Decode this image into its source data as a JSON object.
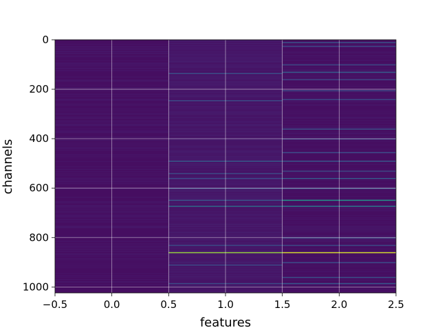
{
  "chart_data": {
    "type": "heatmap",
    "title": "",
    "xlabel": "features",
    "ylabel": "channels",
    "xlim": [
      -0.5,
      2.5
    ],
    "ylim": [
      1024,
      0
    ],
    "y_inverted": true,
    "grid": true,
    "colormap": "viridis",
    "x_ticks": [
      -0.5,
      0.0,
      0.5,
      1.0,
      1.5,
      2.0,
      2.5
    ],
    "x_tick_labels": [
      "−0.5",
      "0.0",
      "0.5",
      "1.0",
      "1.5",
      "2.0",
      "2.5"
    ],
    "y_ticks": [
      0,
      200,
      400,
      600,
      800,
      1000
    ],
    "y_tick_labels": [
      "0",
      "200",
      "400",
      "600",
      "800",
      "1000"
    ],
    "columns": [
      0,
      1,
      2
    ],
    "n_channels": 1024,
    "value_range": [
      0,
      1
    ],
    "column_base_levels": [
      0.05,
      0.07,
      0.05
    ],
    "highlights": [
      {
        "column": 1,
        "channel": 135,
        "value": 0.32
      },
      {
        "column": 1,
        "channel": 245,
        "value": 0.3
      },
      {
        "column": 1,
        "channel": 490,
        "value": 0.38
      },
      {
        "column": 1,
        "channel": 540,
        "value": 0.3
      },
      {
        "column": 1,
        "channel": 560,
        "value": 0.28
      },
      {
        "column": 1,
        "channel": 600,
        "value": 0.3
      },
      {
        "column": 1,
        "channel": 648,
        "value": 0.35
      },
      {
        "column": 1,
        "channel": 672,
        "value": 0.42
      },
      {
        "column": 1,
        "channel": 830,
        "value": 0.3
      },
      {
        "column": 1,
        "channel": 860,
        "value": 0.85
      },
      {
        "column": 1,
        "channel": 910,
        "value": 0.3
      },
      {
        "column": 1,
        "channel": 985,
        "value": 0.3
      },
      {
        "column": 2,
        "channel": 10,
        "value": 0.35
      },
      {
        "column": 2,
        "channel": 25,
        "value": 0.28
      },
      {
        "column": 2,
        "channel": 100,
        "value": 0.3
      },
      {
        "column": 2,
        "channel": 130,
        "value": 0.38
      },
      {
        "column": 2,
        "channel": 160,
        "value": 0.28
      },
      {
        "column": 2,
        "channel": 205,
        "value": 0.3
      },
      {
        "column": 2,
        "channel": 240,
        "value": 0.3
      },
      {
        "column": 2,
        "channel": 360,
        "value": 0.32
      },
      {
        "column": 2,
        "channel": 400,
        "value": 0.28
      },
      {
        "column": 2,
        "channel": 455,
        "value": 0.3
      },
      {
        "column": 2,
        "channel": 490,
        "value": 0.35
      },
      {
        "column": 2,
        "channel": 530,
        "value": 0.3
      },
      {
        "column": 2,
        "channel": 560,
        "value": 0.38
      },
      {
        "column": 2,
        "channel": 600,
        "value": 0.35
      },
      {
        "column": 2,
        "channel": 648,
        "value": 0.55
      },
      {
        "column": 2,
        "channel": 672,
        "value": 0.45
      },
      {
        "column": 2,
        "channel": 800,
        "value": 0.32
      },
      {
        "column": 2,
        "channel": 830,
        "value": 0.3
      },
      {
        "column": 2,
        "channel": 860,
        "value": 0.95
      },
      {
        "column": 2,
        "channel": 900,
        "value": 0.3
      },
      {
        "column": 2,
        "channel": 960,
        "value": 0.32
      },
      {
        "column": 2,
        "channel": 985,
        "value": 0.35
      }
    ]
  }
}
